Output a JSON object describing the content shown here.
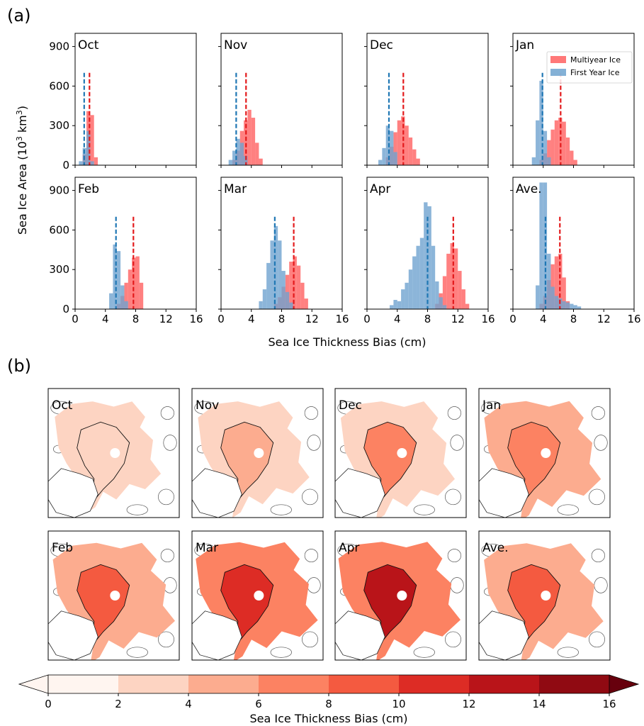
{
  "figure": {
    "panel_a_label": "(a)",
    "panel_b_label": "(b)",
    "ylabel_prefix": "Sea Ice Area (10",
    "ylabel_sup1": "3",
    "ylabel_mid": " km",
    "ylabel_sup2": "3",
    "ylabel_suffix": ")",
    "xlabel": "Sea Ice Thickness Bias (cm)",
    "colorbar_label": "Sea Ice Thickness Bias (cm)"
  },
  "colors": {
    "multiyear": "#ff6060",
    "first_year": "#6fa3cf",
    "multiyear_line": "#e31a1c",
    "first_year_line": "#1f77b4"
  },
  "chart_data": {
    "type": "bar",
    "subtype": "histogram-grid",
    "x_ticks": [
      0,
      4,
      8,
      12,
      16
    ],
    "y_ticks": [
      0,
      300,
      600,
      900
    ],
    "xlim": [
      0,
      16
    ],
    "ylim": [
      0,
      1000
    ],
    "xlabel": "Sea Ice Thickness Bias (cm)",
    "ylabel": "Sea Ice Area (10^3 km^3)",
    "legend": {
      "placement": "top-right",
      "panel": "Jan",
      "entries": [
        "Multiyear Ice",
        "First Year Ice"
      ]
    },
    "panels": [
      {
        "label": "Oct",
        "multiyear": {
          "bin_width": 0.5,
          "x": [
            1.0,
            1.5,
            2.0,
            2.5
          ],
          "values": [
            80,
            410,
            380,
            60
          ],
          "mean": 1.9
        },
        "first_year": {
          "bin_width": 0.5,
          "x": [
            0.5,
            1.0,
            1.5,
            2.0
          ],
          "values": [
            30,
            130,
            260,
            30
          ],
          "mean": 1.2
        }
      },
      {
        "label": "Nov",
        "multiyear": {
          "bin_width": 0.5,
          "x": [
            1.5,
            2.0,
            2.5,
            3.0,
            3.5,
            4.0,
            4.5,
            5.0
          ],
          "values": [
            40,
            110,
            260,
            340,
            420,
            360,
            170,
            50
          ],
          "mean": 3.3
        },
        "first_year": {
          "bin_width": 0.5,
          "x": [
            1.0,
            1.5,
            2.0,
            2.5,
            3.0
          ],
          "values": [
            40,
            110,
            200,
            170,
            70
          ],
          "mean": 2.0
        }
      },
      {
        "label": "Dec",
        "multiyear": {
          "bin_width": 0.5,
          "x": [
            2.5,
            3.0,
            3.5,
            4.0,
            4.5,
            5.0,
            5.5,
            6.0,
            6.5
          ],
          "values": [
            60,
            140,
            250,
            340,
            370,
            300,
            210,
            120,
            50
          ],
          "mean": 4.8
        },
        "first_year": {
          "bin_width": 0.5,
          "x": [
            1.5,
            2.0,
            2.5,
            3.0,
            3.5
          ],
          "values": [
            40,
            130,
            300,
            260,
            100
          ],
          "mean": 2.9
        }
      },
      {
        "label": "Jan",
        "multiyear": {
          "bin_width": 0.5,
          "x": [
            3.5,
            4.0,
            4.5,
            5.0,
            5.5,
            6.0,
            6.5,
            7.0,
            7.5,
            8.0
          ],
          "values": [
            40,
            90,
            190,
            270,
            340,
            360,
            330,
            210,
            110,
            40
          ],
          "mean": 6.3
        },
        "first_year": {
          "bin_width": 0.5,
          "x": [
            2.5,
            3.0,
            3.5,
            4.0,
            4.5
          ],
          "values": [
            60,
            340,
            640,
            260,
            60
          ],
          "mean": 3.9
        }
      },
      {
        "label": "Feb",
        "multiyear": {
          "bin_width": 0.5,
          "x": [
            5.5,
            6.0,
            6.5,
            7.0,
            7.5,
            8.0,
            8.5
          ],
          "values": [
            40,
            100,
            200,
            300,
            390,
            400,
            200
          ],
          "mean": 7.7
        },
        "first_year": {
          "bin_width": 0.5,
          "x": [
            4.5,
            5.0,
            5.5,
            6.0,
            6.5
          ],
          "values": [
            120,
            490,
            440,
            180,
            60
          ],
          "mean": 5.4
        }
      },
      {
        "label": "Mar",
        "multiyear": {
          "bin_width": 0.5,
          "x": [
            7.0,
            7.5,
            8.0,
            8.5,
            9.0,
            9.5,
            10.0,
            10.5,
            11.0
          ],
          "values": [
            40,
            90,
            170,
            260,
            360,
            400,
            330,
            200,
            80
          ],
          "mean": 9.6
        },
        "first_year": {
          "bin_width": 0.5,
          "x": [
            5.0,
            5.5,
            6.0,
            6.5,
            7.0,
            7.5,
            8.0,
            8.5,
            9.0
          ],
          "values": [
            60,
            150,
            350,
            520,
            630,
            520,
            290,
            130,
            50
          ],
          "mean": 7.1
        }
      },
      {
        "label": "Apr",
        "multiyear": {
          "bin_width": 0.5,
          "x": [
            9.0,
            9.5,
            10.0,
            10.5,
            11.0,
            11.5,
            12.0,
            12.5,
            13.0
          ],
          "values": [
            40,
            120,
            250,
            420,
            500,
            460,
            290,
            150,
            40
          ],
          "mean": 11.4
        },
        "first_year": {
          "bin_width": 0.5,
          "x": [
            3.0,
            3.5,
            4.0,
            4.5,
            5.0,
            5.5,
            6.0,
            6.5,
            7.0,
            7.5,
            8.0,
            8.5,
            9.0,
            9.5,
            10.0
          ],
          "values": [
            30,
            70,
            60,
            150,
            200,
            300,
            400,
            480,
            540,
            810,
            780,
            480,
            210,
            90,
            30
          ],
          "mean": 8.0
        }
      },
      {
        "label": "Ave.",
        "multiyear": {
          "bin_width": 0.5,
          "x": [
            3.5,
            4.0,
            4.5,
            5.0,
            5.5,
            6.0,
            6.5,
            7.0
          ],
          "values": [
            40,
            100,
            220,
            340,
            400,
            420,
            240,
            60
          ],
          "mean": 6.2
        },
        "first_year": {
          "bin_width": 0.5,
          "x": [
            3.0,
            3.5,
            4.0,
            4.5,
            5.0,
            5.5,
            6.0,
            6.5,
            7.0,
            7.5,
            8.0,
            8.5
          ],
          "values": [
            180,
            960,
            960,
            420,
            170,
            100,
            80,
            60,
            50,
            40,
            30,
            20
          ],
          "mean": 4.3
        }
      }
    ]
  },
  "maps": {
    "panels": [
      {
        "label": "Oct",
        "level": 1
      },
      {
        "label": "Nov",
        "level": 2
      },
      {
        "label": "Dec",
        "level": 2.5
      },
      {
        "label": "Jan",
        "level": 3
      },
      {
        "label": "Feb",
        "level": 4
      },
      {
        "label": "Mar",
        "level": 5
      },
      {
        "label": "Apr",
        "level": 5.5
      },
      {
        "label": "Ave.",
        "level": 3.5
      }
    ]
  },
  "colorbar": {
    "ticks": [
      0,
      2,
      4,
      6,
      8,
      10,
      12,
      14,
      16
    ],
    "extend": "both",
    "colors": [
      "#fff5f0",
      "#fdd4c2",
      "#fcac8f",
      "#fc8262",
      "#f45a40",
      "#dd2c25",
      "#b91419",
      "#900a12",
      "#67000d"
    ]
  }
}
